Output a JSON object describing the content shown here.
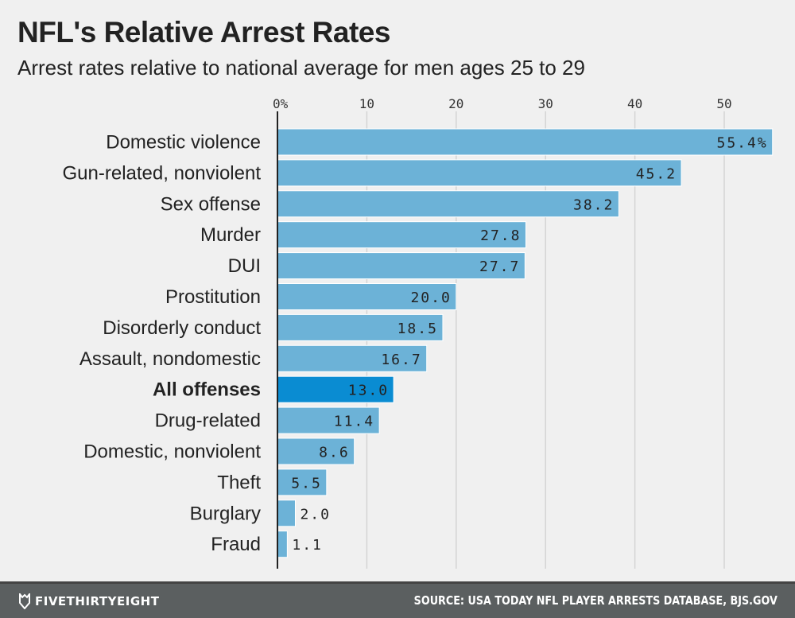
{
  "chart_data": {
    "type": "bar",
    "orientation": "horizontal",
    "title": "NFL's Relative Arrest Rates",
    "subtitle": "Arrest rates relative to national average for men ages 25 to 29",
    "categories": [
      "Domestic violence",
      "Gun-related, nonviolent",
      "Sex offense",
      "Murder",
      "DUI",
      "Prostitution",
      "Disorderly conduct",
      "Assault, nondomestic",
      "All offenses",
      "Drug-related",
      "Domestic, nonviolent",
      "Theft",
      "Burglary",
      "Fraud"
    ],
    "values": [
      55.4,
      45.2,
      38.2,
      27.8,
      27.7,
      20.0,
      18.5,
      16.7,
      13.0,
      11.4,
      8.6,
      5.5,
      2.0,
      1.1
    ],
    "value_labels": [
      "55.4%",
      "45.2",
      "38.2",
      "27.8",
      "27.7",
      "20.0",
      "18.5",
      "16.7",
      "13.0",
      "11.4",
      "8.6",
      "5.5",
      "2.0",
      "1.1"
    ],
    "highlight": "All offenses",
    "xticks": [
      0,
      10,
      20,
      30,
      40,
      50
    ],
    "xtick_labels": [
      "0%",
      "10",
      "20",
      "30",
      "40",
      "50"
    ],
    "xlim": [
      0,
      55.4
    ],
    "grid": true,
    "colors": {
      "bar": "#6cb2d7",
      "highlight": "#0a8cd2",
      "grid": "#d4d4d4",
      "background": "#f0f0f0"
    }
  },
  "footer": {
    "brand": "FIVETHIRTYEIGHT",
    "source": "SOURCE: USA TODAY NFL PLAYER ARRESTS DATABASE, BJS.GOV",
    "colors": {
      "background": "#5b5f60"
    }
  }
}
